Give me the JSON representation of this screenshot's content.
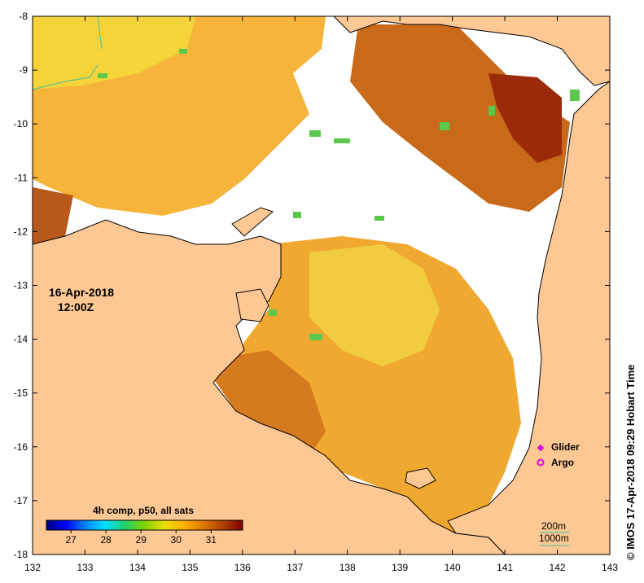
{
  "map": {
    "x_ticks": [
      "132",
      "133",
      "134",
      "135",
      "136",
      "137",
      "138",
      "139",
      "140",
      "141",
      "142",
      "143"
    ],
    "y_ticks": [
      "-8",
      "-9",
      "-10",
      "-11",
      "-12",
      "-13",
      "-14",
      "-15",
      "-16",
      "-17",
      "-18"
    ],
    "date_line": "16-Apr-2018",
    "time_line": "12:00Z",
    "colorbar": {
      "title": "4h comp, p50, all sats",
      "labels": [
        "27",
        "28",
        "29",
        "30",
        "31"
      ],
      "range": [
        26.3,
        31.9
      ],
      "colors": [
        "#00007f",
        "#0000ff",
        "#0087ff",
        "#00e0ff",
        "#1fd16a",
        "#80d000",
        "#e8e000",
        "#ffb000",
        "#e07800",
        "#b04000",
        "#800000"
      ]
    },
    "legend": {
      "glider": "Glider",
      "argo": "Argo",
      "glider_color": "#e000e0",
      "argo_color": "#e000e0"
    },
    "contours": {
      "c200": "200m",
      "c1000": "1000m",
      "color": "#40c0a0"
    },
    "credit": "©  IMOS 17-Apr-2018 09:29 Hobart Time",
    "colors": {
      "land": "#fdc893",
      "no_data": "#ffffff",
      "coast": "#000000"
    }
  }
}
